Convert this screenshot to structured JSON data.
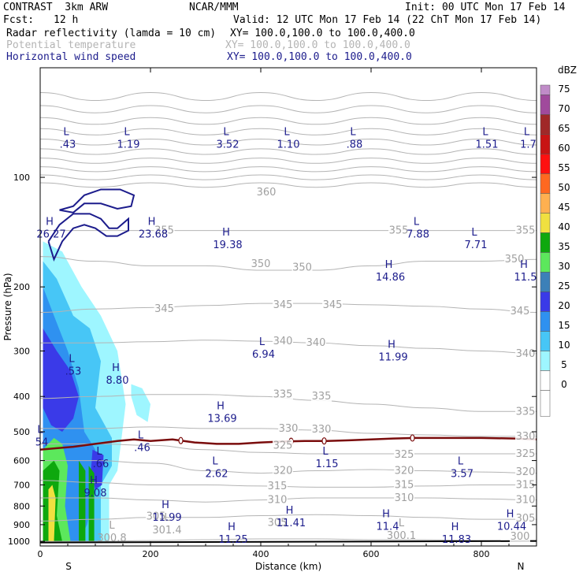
{
  "header": {
    "title": "CONTRAST  3km ARW",
    "center": "NCAR/MMM",
    "init": "Init: 00 UTC Mon 17 Feb 14",
    "fcst_label": "Fcst:",
    "fcst_value": "12 h",
    "valid": "Valid: 12 UTC Mon 17 Feb 14 (22 ChT Mon 17 Feb 14)",
    "fields": [
      {
        "name": "Radar reflectivity (lamda = 10 cm)",
        "xy": "XY= 100.0,100.0 to 100.0,400.0",
        "color": "#000000"
      },
      {
        "name": "Potential temperature",
        "xy": "XY= 100.0,100.0 to 100.0,400.0",
        "color": "#b4b4b4"
      },
      {
        "name": "Horizontal wind speed",
        "xy": "XY= 100.0,100.0 to 100.0,400.0",
        "color": "#1c1c8c"
      }
    ]
  },
  "chart_data": {
    "type": "heatmap",
    "xlabel": "Distance (km)",
    "ylabel": "Pressure (hPa)",
    "xlim": [
      0,
      900
    ],
    "ylim": [
      1030,
      50
    ],
    "y_scale": "log",
    "x_ticks": [
      0,
      200,
      400,
      600,
      800
    ],
    "y_ticks": [
      100,
      200,
      300,
      400,
      500,
      600,
      700,
      800,
      900,
      1000
    ],
    "x_end_labels": {
      "left": "S",
      "right": "N"
    },
    "colorbar": {
      "unit": "dBZ",
      "levels": [
        {
          "value": "0",
          "color": "#ffffff"
        },
        {
          "value": "5",
          "color": "#9ef6ff"
        },
        {
          "value": "10",
          "color": "#47c6f6"
        },
        {
          "value": "15",
          "color": "#2f91f0"
        },
        {
          "value": "20",
          "color": "#3a3ae8"
        },
        {
          "value": "25",
          "color": "#3c80b8"
        },
        {
          "value": "30",
          "color": "#5ce85c"
        },
        {
          "value": "35",
          "color": "#0ea80e"
        },
        {
          "value": "40",
          "color": "#f0e040"
        },
        {
          "value": "45",
          "color": "#ffb050"
        },
        {
          "value": "50",
          "color": "#ff6820"
        },
        {
          "value": "55",
          "color": "#ff1010"
        },
        {
          "value": "60",
          "color": "#c81414"
        },
        {
          "value": "65",
          "color": "#a02828"
        },
        {
          "value": "70",
          "color": "#a04a9c"
        },
        {
          "value": "75",
          "color": "#c08cc8"
        }
      ]
    },
    "reflectivity_regions": [
      {
        "dbz": 5,
        "points": [
          [
            5,
            1000
          ],
          [
            5,
            150
          ],
          [
            40,
            160
          ],
          [
            75,
            200
          ],
          [
            110,
            240
          ],
          [
            140,
            300
          ],
          [
            155,
            420
          ],
          [
            145,
            560
          ],
          [
            140,
            640
          ],
          [
            125,
            700
          ],
          [
            125,
            1000
          ]
        ]
      },
      {
        "dbz": 5,
        "points": [
          [
            165,
            370
          ],
          [
            185,
            380
          ],
          [
            200,
            420
          ],
          [
            195,
            470
          ],
          [
            175,
            450
          ],
          [
            165,
            400
          ]
        ]
      },
      {
        "dbz": 10,
        "points": [
          [
            5,
            1000
          ],
          [
            5,
            170
          ],
          [
            30,
            190
          ],
          [
            60,
            240
          ],
          [
            90,
            260
          ],
          [
            110,
            320
          ],
          [
            100,
            430
          ],
          [
            130,
            520
          ],
          [
            130,
            620
          ],
          [
            110,
            700
          ],
          [
            110,
            1000
          ]
        ]
      },
      {
        "dbz": 15,
        "points": [
          [
            5,
            1000
          ],
          [
            5,
            200
          ],
          [
            25,
            240
          ],
          [
            50,
            300
          ],
          [
            70,
            380
          ],
          [
            80,
            500
          ],
          [
            100,
            560
          ],
          [
            100,
            720
          ],
          [
            85,
            900
          ],
          [
            70,
            1000
          ]
        ]
      },
      {
        "dbz": 20,
        "points": [
          [
            5,
            430
          ],
          [
            5,
            260
          ],
          [
            30,
            300
          ],
          [
            55,
            340
          ],
          [
            70,
            400
          ],
          [
            60,
            460
          ],
          [
            40,
            500
          ],
          [
            20,
            480
          ]
        ]
      },
      {
        "dbz": 20,
        "points": [
          [
            95,
            560
          ],
          [
            115,
            580
          ],
          [
            112,
            700
          ],
          [
            100,
            720
          ],
          [
            92,
            640
          ]
        ]
      },
      {
        "dbz": 30,
        "points": [
          [
            5,
            1000
          ],
          [
            5,
            560
          ],
          [
            25,
            520
          ],
          [
            40,
            540
          ],
          [
            50,
            620
          ],
          [
            45,
            800
          ],
          [
            55,
            1000
          ]
        ]
      },
      {
        "dbz": 35,
        "points": [
          [
            5,
            1000
          ],
          [
            5,
            640
          ],
          [
            25,
            600
          ],
          [
            35,
            640
          ],
          [
            30,
            850
          ],
          [
            40,
            1000
          ]
        ]
      },
      {
        "dbz": 35,
        "points": [
          [
            70,
            1000
          ],
          [
            70,
            600
          ],
          [
            82,
            640
          ],
          [
            82,
            1000
          ]
        ]
      },
      {
        "dbz": 35,
        "points": [
          [
            88,
            1000
          ],
          [
            88,
            620
          ],
          [
            98,
            650
          ],
          [
            98,
            1000
          ]
        ]
      },
      {
        "dbz": 40,
        "points": [
          [
            15,
            1000
          ],
          [
            15,
            720
          ],
          [
            22,
            700
          ],
          [
            28,
            760
          ],
          [
            25,
            1000
          ]
        ]
      }
    ],
    "theta_contours": [
      {
        "label": "355",
        "y": [
          140,
          140,
          140,
          140,
          140,
          140,
          140,
          140,
          140,
          140
        ]
      },
      {
        "label": "350",
        "y": [
          165,
          170,
          175,
          175,
          180,
          180,
          175,
          170,
          170,
          168
        ]
      },
      {
        "label": "345",
        "y": [
          235,
          230,
          228,
          225,
          222,
          222,
          224,
          226,
          230,
          235
        ]
      },
      {
        "label": "340",
        "y": [
          285,
          285,
          283,
          280,
          282,
          285,
          290,
          295,
          300,
          305
        ]
      },
      {
        "label": "335",
        "y": [
          405,
          400,
          395,
          395,
          400,
          410,
          420,
          430,
          440,
          440
        ]
      },
      {
        "label": "330",
        "y": [
          490,
          490,
          485,
          490,
          490,
          495,
          505,
          510,
          515,
          515
        ]
      },
      {
        "label": "325",
        "y": [
          540,
          540,
          545,
          560,
          570,
          575,
          575,
          575,
          575,
          575
        ]
      },
      {
        "label": "320",
        "y": [
          600,
          600,
          610,
          640,
          650,
          640,
          635,
          640,
          645,
          650
        ]
      },
      {
        "label": "315",
        "y": [
          680,
          690,
          700,
          700,
          705,
          710,
          710,
          705,
          700,
          700
        ]
      },
      {
        "label": "310",
        "y": [
          760,
          760,
          770,
          780,
          770,
          760,
          760,
          760,
          765,
          770
        ]
      },
      {
        "label": "305",
        "y": [
          880,
          870,
          860,
          860,
          850,
          845,
          850,
          860,
          870,
          870
        ]
      },
      {
        "label": "300",
        "y": [
          1000,
          1000,
          995,
          990,
          985,
          985,
          990,
          990,
          995,
          1000
        ]
      }
    ],
    "contour_x": [
      0,
      100,
      200,
      300,
      400,
      500,
      600,
      700,
      800,
      900
    ],
    "theta_labels": [
      {
        "text": "360",
        "x": 410,
        "p": 110
      },
      {
        "text": "355",
        "x": 225,
        "p": 140
      },
      {
        "text": "355",
        "x": 650,
        "p": 140
      },
      {
        "text": "355",
        "x": 880,
        "p": 140
      },
      {
        "text": "350",
        "x": 400,
        "p": 173
      },
      {
        "text": "350",
        "x": 475,
        "p": 177
      },
      {
        "text": "350",
        "x": 860,
        "p": 168
      },
      {
        "text": "345",
        "x": 225,
        "p": 230
      },
      {
        "text": "345",
        "x": 440,
        "p": 224
      },
      {
        "text": "345",
        "x": 530,
        "p": 224
      },
      {
        "text": "345",
        "x": 870,
        "p": 233
      },
      {
        "text": "340",
        "x": 440,
        "p": 282
      },
      {
        "text": "340",
        "x": 500,
        "p": 285
      },
      {
        "text": "340",
        "x": 880,
        "p": 305
      },
      {
        "text": "335",
        "x": 440,
        "p": 395
      },
      {
        "text": "335",
        "x": 510,
        "p": 400
      },
      {
        "text": "335",
        "x": 880,
        "p": 440
      },
      {
        "text": "330",
        "x": 450,
        "p": 490
      },
      {
        "text": "330",
        "x": 510,
        "p": 492
      },
      {
        "text": "330",
        "x": 880,
        "p": 515
      },
      {
        "text": "325",
        "x": 440,
        "p": 545
      },
      {
        "text": "325",
        "x": 660,
        "p": 578
      },
      {
        "text": "325",
        "x": 880,
        "p": 575
      },
      {
        "text": "320",
        "x": 440,
        "p": 640
      },
      {
        "text": "320",
        "x": 660,
        "p": 640
      },
      {
        "text": "320",
        "x": 880,
        "p": 645
      },
      {
        "text": "315",
        "x": 430,
        "p": 705
      },
      {
        "text": "315",
        "x": 660,
        "p": 700
      },
      {
        "text": "315",
        "x": 880,
        "p": 700
      },
      {
        "text": "310",
        "x": 430,
        "p": 770
      },
      {
        "text": "310",
        "x": 660,
        "p": 760
      },
      {
        "text": "310",
        "x": 880,
        "p": 770
      },
      {
        "text": "305",
        "x": 210,
        "p": 855
      },
      {
        "text": "305",
        "x": 430,
        "p": 890
      },
      {
        "text": "305",
        "x": 880,
        "p": 865
      },
      {
        "text": "300",
        "x": 870,
        "p": 970
      }
    ],
    "theta_extrema": [
      {
        "kind": "L",
        "value": "301.4",
        "x": 230,
        "p": 950
      },
      {
        "kind": "L",
        "value": "300.8",
        "x": 130,
        "p": 1000
      },
      {
        "kind": "L",
        "value": "300.1",
        "x": 655,
        "p": 985
      }
    ],
    "wind_extrema": [
      {
        "kind": "L",
        "value": ".43",
        "x": 50,
        "p": 82
      },
      {
        "kind": "L",
        "value": "1.19",
        "x": 160,
        "p": 82
      },
      {
        "kind": "L",
        "value": "3.52",
        "x": 340,
        "p": 82
      },
      {
        "kind": "L",
        "value": "1.10",
        "x": 450,
        "p": 82
      },
      {
        "kind": "L",
        "value": ".88",
        "x": 570,
        "p": 82
      },
      {
        "kind": "L",
        "value": "1.51",
        "x": 810,
        "p": 82
      },
      {
        "kind": "L",
        "value": "1.7",
        "x": 885,
        "p": 82
      },
      {
        "kind": "H",
        "value": "26.27",
        "x": 20,
        "p": 145
      },
      {
        "kind": "H",
        "value": "23.68",
        "x": 205,
        "p": 145
      },
      {
        "kind": "H",
        "value": "19.38",
        "x": 340,
        "p": 155
      },
      {
        "kind": "L",
        "value": "7.88",
        "x": 685,
        "p": 145
      },
      {
        "kind": "L",
        "value": "7.71",
        "x": 790,
        "p": 155
      },
      {
        "kind": "H",
        "value": "14.86",
        "x": 635,
        "p": 190
      },
      {
        "kind": "H",
        "value": "11.5",
        "x": 880,
        "p": 190
      },
      {
        "kind": "L",
        "value": "6.94",
        "x": 405,
        "p": 310
      },
      {
        "kind": "H",
        "value": "11.99",
        "x": 640,
        "p": 315
      },
      {
        "kind": "L",
        "value": ".53",
        "x": 60,
        "p": 345
      },
      {
        "kind": "H",
        "value": "8.80",
        "x": 140,
        "p": 365
      },
      {
        "kind": "H",
        "value": "13.69",
        "x": 330,
        "p": 465
      },
      {
        "kind": "L",
        "value": "54",
        "x": 0,
        "p": 540
      },
      {
        "kind": "L",
        "value": ".46",
        "x": 185,
        "p": 560
      },
      {
        "kind": "L",
        "value": ".66",
        "x": 110,
        "p": 620
      },
      {
        "kind": "L",
        "value": "1.15",
        "x": 520,
        "p": 620
      },
      {
        "kind": "L",
        "value": "2.62",
        "x": 320,
        "p": 660
      },
      {
        "kind": "L",
        "value": "3.57",
        "x": 765,
        "p": 660
      },
      {
        "kind": "H",
        "value": "9.08",
        "x": 100,
        "p": 745
      },
      {
        "kind": "H",
        "value": "11.99",
        "x": 230,
        "p": 870
      },
      {
        "kind": "H",
        "value": "11.41",
        "x": 455,
        "p": 900
      },
      {
        "kind": "H",
        "value": "11.4",
        "x": 630,
        "p": 920
      },
      {
        "kind": "H",
        "value": "10.44",
        "x": 855,
        "p": 920
      },
      {
        "kind": "H",
        "value": "11.25",
        "x": 350,
        "p": 1000
      },
      {
        "kind": "H",
        "value": "11.83",
        "x": 755,
        "p": 1000
      }
    ],
    "wind_jets": [
      {
        "points": [
          [
            35,
            123
          ],
          [
            60,
            120
          ],
          [
            80,
            112
          ],
          [
            110,
            108
          ],
          [
            145,
            108
          ],
          [
            170,
            112
          ],
          [
            165,
            120
          ],
          [
            140,
            122
          ],
          [
            110,
            118
          ],
          [
            80,
            118
          ],
          [
            60,
            125
          ],
          [
            35,
            123
          ]
        ]
      },
      {
        "points": [
          [
            15,
            150
          ],
          [
            35,
            135
          ],
          [
            60,
            126
          ],
          [
            90,
            126
          ],
          [
            110,
            130
          ],
          [
            125,
            138
          ],
          [
            140,
            138
          ],
          [
            160,
            130
          ],
          [
            160,
            140
          ],
          [
            140,
            145
          ],
          [
            120,
            145
          ],
          [
            100,
            138
          ],
          [
            80,
            135
          ],
          [
            60,
            138
          ],
          [
            40,
            150
          ],
          [
            25,
            168
          ],
          [
            15,
            150
          ]
        ]
      }
    ],
    "tropopause_line": [
      [
        0,
        560
      ],
      [
        30,
        555
      ],
      [
        60,
        550
      ],
      [
        100,
        540
      ],
      [
        140,
        530
      ],
      [
        170,
        525
      ],
      [
        200,
        530
      ],
      [
        240,
        525
      ],
      [
        280,
        535
      ],
      [
        320,
        540
      ],
      [
        360,
        540
      ],
      [
        400,
        535
      ],
      [
        440,
        532
      ],
      [
        480,
        530
      ],
      [
        520,
        530
      ],
      [
        560,
        528
      ],
      [
        600,
        525
      ],
      [
        640,
        522
      ],
      [
        680,
        520
      ],
      [
        720,
        520
      ],
      [
        760,
        520
      ],
      [
        800,
        520
      ],
      [
        860,
        522
      ],
      [
        900,
        525
      ]
    ],
    "tropopause_markers": [
      255,
      455,
      515,
      675
    ],
    "upper_band_contours": [
      60,
      65,
      70,
      75,
      80,
      85,
      90,
      95,
      100,
      105
    ],
    "ground_line_p": 1008
  }
}
